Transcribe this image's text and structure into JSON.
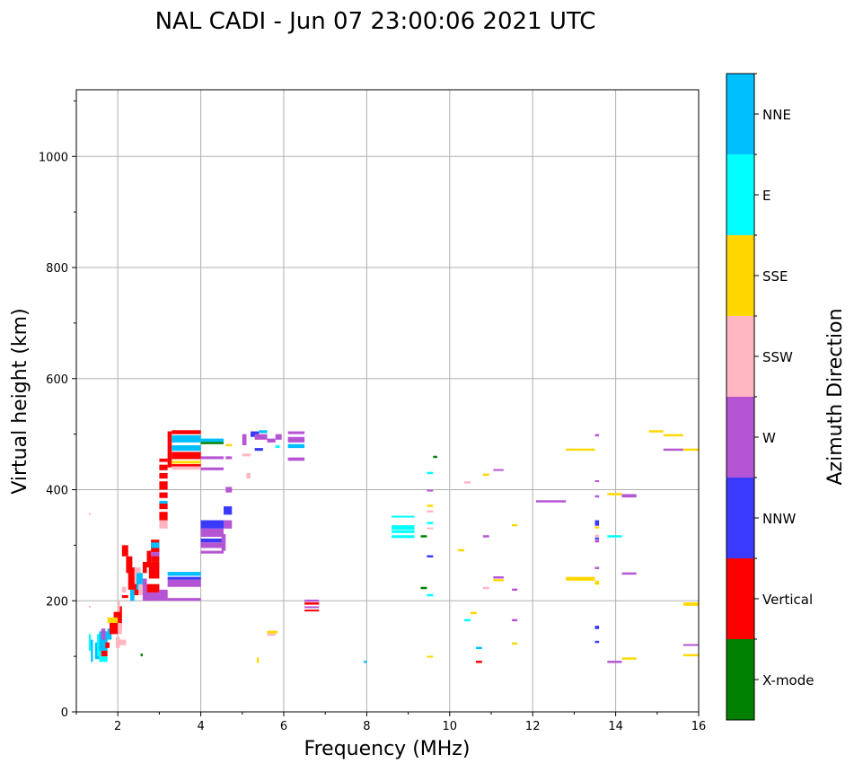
{
  "chart_data": {
    "type": "scatter",
    "title": "NAL CADI - Jun 07 23:00:06 2021 UTC",
    "xlabel": "Frequency (MHz)",
    "ylabel": "Virtual height (km)",
    "xlim": [
      1,
      16
    ],
    "ylim": [
      0,
      1120
    ],
    "grid": true,
    "xticks": [
      2,
      4,
      6,
      8,
      10,
      12,
      14,
      16
    ],
    "yticks": [
      0,
      200,
      400,
      600,
      800,
      1000
    ],
    "colorbar": {
      "label": "Azimuth Direction",
      "categories": [
        "X-mode",
        "Vertical",
        "NNW",
        "W",
        "SSW",
        "SSE",
        "E",
        "NNE"
      ],
      "colors": [
        "#008000",
        "#ff0000",
        "#3a3aff",
        "#b655d4",
        "#ffb6c1",
        "#ffd700",
        "#00ffff",
        "#00bfff"
      ]
    },
    "series_format": "[freq_start_MHz, freq_end_MHz, height_low_km, height_high_km, azimuth]",
    "echoes": [
      [
        1.3,
        1.35,
        110,
        140,
        "E"
      ],
      [
        1.35,
        1.4,
        90,
        130,
        "NNE"
      ],
      [
        1.45,
        1.55,
        95,
        125,
        "NNE"
      ],
      [
        1.5,
        1.6,
        100,
        140,
        "E"
      ],
      [
        1.55,
        1.75,
        110,
        145,
        "NNE"
      ],
      [
        1.6,
        1.7,
        130,
        150,
        "W"
      ],
      [
        1.55,
        1.75,
        90,
        100,
        "E"
      ],
      [
        1.6,
        1.75,
        100,
        110,
        "Vertical"
      ],
      [
        1.7,
        1.8,
        115,
        125,
        "Vertical"
      ],
      [
        1.75,
        1.85,
        130,
        150,
        "NNE"
      ],
      [
        1.8,
        2.0,
        140,
        160,
        "Vertical"
      ],
      [
        1.75,
        2.0,
        160,
        170,
        "SSE"
      ],
      [
        1.9,
        2.05,
        170,
        180,
        "Vertical"
      ],
      [
        2.0,
        2.1,
        150,
        190,
        "Vertical"
      ],
      [
        1.95,
        2.05,
        115,
        135,
        "SSW"
      ],
      [
        2.05,
        2.2,
        120,
        130,
        "SSW"
      ],
      [
        2.0,
        2.1,
        140,
        160,
        "SSW"
      ],
      [
        2.0,
        2.05,
        180,
        200,
        "SSW"
      ],
      [
        1.3,
        1.35,
        355,
        358,
        "SSW"
      ],
      [
        1.3,
        1.35,
        188,
        191,
        "SSW"
      ],
      [
        2.1,
        2.25,
        280,
        300,
        "Vertical"
      ],
      [
        2.2,
        2.35,
        250,
        280,
        "Vertical"
      ],
      [
        2.25,
        2.45,
        220,
        260,
        "Vertical"
      ],
      [
        2.3,
        2.5,
        210,
        240,
        "Vertical"
      ],
      [
        2.3,
        2.4,
        200,
        220,
        "NNE"
      ],
      [
        2.4,
        2.55,
        230,
        260,
        "SSW"
      ],
      [
        2.45,
        2.6,
        220,
        250,
        "NNE"
      ],
      [
        2.5,
        2.65,
        210,
        230,
        "SSW"
      ],
      [
        2.6,
        2.7,
        250,
        270,
        "Vertical"
      ],
      [
        2.6,
        2.7,
        200,
        240,
        "W"
      ],
      [
        2.7,
        2.8,
        260,
        290,
        "Vertical"
      ],
      [
        2.75,
        3.0,
        240,
        270,
        "Vertical"
      ],
      [
        2.8,
        3.0,
        270,
        310,
        "Vertical"
      ],
      [
        2.8,
        3.0,
        295,
        305,
        "NNE"
      ],
      [
        2.8,
        3.0,
        280,
        288,
        "W"
      ],
      [
        2.7,
        3.0,
        215,
        230,
        "Vertical"
      ],
      [
        2.1,
        2.2,
        215,
        225,
        "SSW"
      ],
      [
        2.1,
        2.25,
        205,
        210,
        "Vertical"
      ],
      [
        2.65,
        3.2,
        200,
        215,
        "W"
      ],
      [
        3.0,
        3.2,
        205,
        220,
        "W"
      ],
      [
        3.2,
        4.0,
        200,
        205,
        "W"
      ],
      [
        3.2,
        4.0,
        225,
        238,
        "W"
      ],
      [
        3.2,
        4.0,
        238,
        243,
        "NNW"
      ],
      [
        3.2,
        4.0,
        245,
        252,
        "NNE"
      ],
      [
        2.55,
        2.6,
        100,
        105,
        "X-mode"
      ],
      [
        3.0,
        3.2,
        330,
        345,
        "SSW"
      ],
      [
        3.0,
        3.2,
        345,
        360,
        "Vertical"
      ],
      [
        3.0,
        3.2,
        365,
        375,
        "Vertical"
      ],
      [
        3.0,
        3.2,
        375,
        380,
        "NNE"
      ],
      [
        3.0,
        3.2,
        385,
        395,
        "Vertical"
      ],
      [
        3.0,
        3.2,
        400,
        415,
        "Vertical"
      ],
      [
        3.0,
        3.2,
        420,
        430,
        "Vertical"
      ],
      [
        3.0,
        3.2,
        435,
        445,
        "Vertical"
      ],
      [
        3.0,
        3.2,
        450,
        456,
        "Vertical"
      ],
      [
        3.2,
        3.3,
        440,
        505,
        "Vertical"
      ],
      [
        3.3,
        4.0,
        500,
        507,
        "Vertical"
      ],
      [
        3.3,
        4.0,
        485,
        498,
        "NNE"
      ],
      [
        3.3,
        4.0,
        470,
        480,
        "NNE"
      ],
      [
        3.3,
        4.0,
        455,
        468,
        "Vertical"
      ],
      [
        3.3,
        4.0,
        447,
        452,
        "SSE"
      ],
      [
        3.3,
        4.0,
        436,
        442,
        "SSW"
      ],
      [
        3.3,
        4.0,
        442,
        446,
        "Vertical"
      ],
      [
        4.0,
        4.55,
        486,
        492,
        "NNE"
      ],
      [
        4.0,
        4.55,
        482,
        486,
        "X-mode"
      ],
      [
        4.0,
        4.55,
        435,
        440,
        "W"
      ],
      [
        4.0,
        4.55,
        455,
        460,
        "W"
      ],
      [
        4.6,
        4.75,
        455,
        460,
        "W"
      ],
      [
        4.6,
        4.75,
        478,
        482,
        "SSE"
      ],
      [
        4.0,
        4.55,
        330,
        345,
        "NNW"
      ],
      [
        4.0,
        4.55,
        315,
        330,
        "W"
      ],
      [
        4.0,
        4.55,
        305,
        312,
        "NNW"
      ],
      [
        4.0,
        4.55,
        285,
        290,
        "W"
      ],
      [
        4.0,
        4.55,
        295,
        305,
        "W"
      ],
      [
        4.55,
        4.75,
        330,
        345,
        "W"
      ],
      [
        4.55,
        4.75,
        355,
        370,
        "NNW"
      ],
      [
        4.6,
        4.75,
        395,
        405,
        "W"
      ],
      [
        4.5,
        4.6,
        290,
        320,
        "W"
      ],
      [
        5.0,
        5.1,
        480,
        500,
        "W"
      ],
      [
        5.2,
        5.4,
        495,
        505,
        "NNW"
      ],
      [
        5.3,
        5.6,
        490,
        500,
        "W"
      ],
      [
        5.4,
        5.6,
        502,
        507,
        "NNE"
      ],
      [
        5.6,
        5.8,
        485,
        492,
        "W"
      ],
      [
        5.3,
        5.5,
        470,
        475,
        "NNW"
      ],
      [
        5.0,
        5.2,
        460,
        465,
        "SSW"
      ],
      [
        5.1,
        5.2,
        420,
        430,
        "SSW"
      ],
      [
        5.8,
        5.95,
        490,
        500,
        "W"
      ],
      [
        5.8,
        5.9,
        475,
        480,
        "E"
      ],
      [
        6.1,
        6.5,
        500,
        505,
        "W"
      ],
      [
        6.1,
        6.5,
        475,
        482,
        "NNE"
      ],
      [
        6.1,
        6.5,
        452,
        458,
        "W"
      ],
      [
        6.1,
        6.5,
        485,
        495,
        "W"
      ],
      [
        5.6,
        5.85,
        141,
        146,
        "SSE"
      ],
      [
        5.6,
        5.8,
        137,
        141,
        "SSW"
      ],
      [
        5.35,
        5.4,
        88,
        98,
        "SSE"
      ],
      [
        6.5,
        6.85,
        198,
        202,
        "W"
      ],
      [
        6.5,
        6.85,
        193,
        197,
        "Vertical"
      ],
      [
        6.5,
        6.85,
        187,
        190,
        "W"
      ],
      [
        6.5,
        6.85,
        182,
        184,
        "Vertical"
      ],
      [
        8.6,
        9.15,
        351,
        353,
        "E"
      ],
      [
        8.6,
        9.15,
        328,
        336,
        "E"
      ],
      [
        8.6,
        9.15,
        322,
        327,
        "E"
      ],
      [
        8.6,
        9.15,
        313,
        318,
        "E"
      ],
      [
        9.3,
        9.45,
        314,
        318,
        "X-mode"
      ],
      [
        9.3,
        9.45,
        221,
        225,
        "X-mode"
      ],
      [
        9.6,
        9.7,
        457,
        461,
        "X-mode"
      ],
      [
        9.45,
        9.6,
        428,
        432,
        "E"
      ],
      [
        9.45,
        9.6,
        397,
        400,
        "W"
      ],
      [
        9.45,
        9.6,
        369,
        373,
        "SSE"
      ],
      [
        9.45,
        9.6,
        359,
        363,
        "SSW"
      ],
      [
        9.45,
        9.6,
        338,
        342,
        "E"
      ],
      [
        9.45,
        9.6,
        330,
        332,
        "SSW"
      ],
      [
        9.45,
        9.6,
        278,
        282,
        "NNW"
      ],
      [
        9.45,
        9.6,
        208,
        212,
        "E"
      ],
      [
        9.45,
        9.6,
        99,
        101,
        "SSE"
      ],
      [
        7.93,
        8.0,
        88,
        92,
        "NNE"
      ],
      [
        10.35,
        10.5,
        411,
        415,
        "SSW"
      ],
      [
        10.8,
        10.95,
        425,
        429,
        "SSE"
      ],
      [
        11.05,
        11.3,
        435,
        437,
        "W"
      ],
      [
        10.2,
        10.35,
        289,
        293,
        "SSE"
      ],
      [
        10.8,
        10.95,
        314,
        318,
        "W"
      ],
      [
        11.5,
        11.63,
        334,
        338,
        "SSE"
      ],
      [
        11.05,
        11.3,
        240,
        244,
        "W"
      ],
      [
        11.05,
        11.3,
        235,
        239,
        "SSE"
      ],
      [
        10.8,
        10.95,
        221,
        225,
        "SSW"
      ],
      [
        11.5,
        11.63,
        218,
        222,
        "W"
      ],
      [
        10.5,
        10.65,
        176,
        180,
        "SSE"
      ],
      [
        10.35,
        10.5,
        163,
        167,
        "E"
      ],
      [
        11.5,
        11.63,
        163,
        167,
        "W"
      ],
      [
        10.63,
        10.78,
        113,
        117,
        "NNE"
      ],
      [
        10.63,
        10.78,
        88,
        92,
        "Vertical"
      ],
      [
        11.5,
        11.63,
        121,
        125,
        "SSE"
      ],
      [
        12.08,
        12.8,
        377,
        381,
        "W"
      ],
      [
        12.8,
        13.5,
        470,
        474,
        "SSE"
      ],
      [
        13.5,
        13.6,
        496,
        500,
        "W"
      ],
      [
        13.5,
        13.6,
        415,
        417,
        "W"
      ],
      [
        13.5,
        13.6,
        386,
        390,
        "W"
      ],
      [
        13.8,
        14.15,
        390,
        394,
        "SSE"
      ],
      [
        14.15,
        14.5,
        386,
        392,
        "W"
      ],
      [
        13.5,
        13.6,
        335,
        345,
        "NNW"
      ],
      [
        13.5,
        13.6,
        330,
        334,
        "SSE"
      ],
      [
        13.5,
        13.6,
        315,
        319,
        "SSW"
      ],
      [
        13.5,
        13.6,
        311,
        314,
        "NNW"
      ],
      [
        13.5,
        13.6,
        305,
        310,
        "W"
      ],
      [
        13.8,
        14.15,
        314,
        318,
        "E"
      ],
      [
        13.5,
        13.6,
        257,
        261,
        "W"
      ],
      [
        14.15,
        14.5,
        247,
        251,
        "W"
      ],
      [
        12.8,
        13.5,
        236,
        243,
        "SSE"
      ],
      [
        13.5,
        13.6,
        229,
        236,
        "SSE"
      ],
      [
        13.5,
        13.6,
        149,
        155,
        "NNW"
      ],
      [
        13.5,
        13.6,
        124,
        128,
        "NNW"
      ],
      [
        13.8,
        14.15,
        88,
        92,
        "W"
      ],
      [
        14.15,
        14.5,
        94,
        98,
        "SSE"
      ],
      [
        14.8,
        15.15,
        503,
        507,
        "SSE"
      ],
      [
        15.15,
        15.63,
        496,
        500,
        "SSE"
      ],
      [
        15.15,
        15.63,
        470,
        474,
        "W"
      ],
      [
        15.63,
        16.0,
        470,
        474,
        "SSE"
      ],
      [
        15.63,
        16.0,
        191,
        197,
        "SSE"
      ],
      [
        15.63,
        16.0,
        120,
        122,
        "W"
      ],
      [
        15.63,
        16.0,
        100,
        104,
        "SSE"
      ]
    ]
  }
}
